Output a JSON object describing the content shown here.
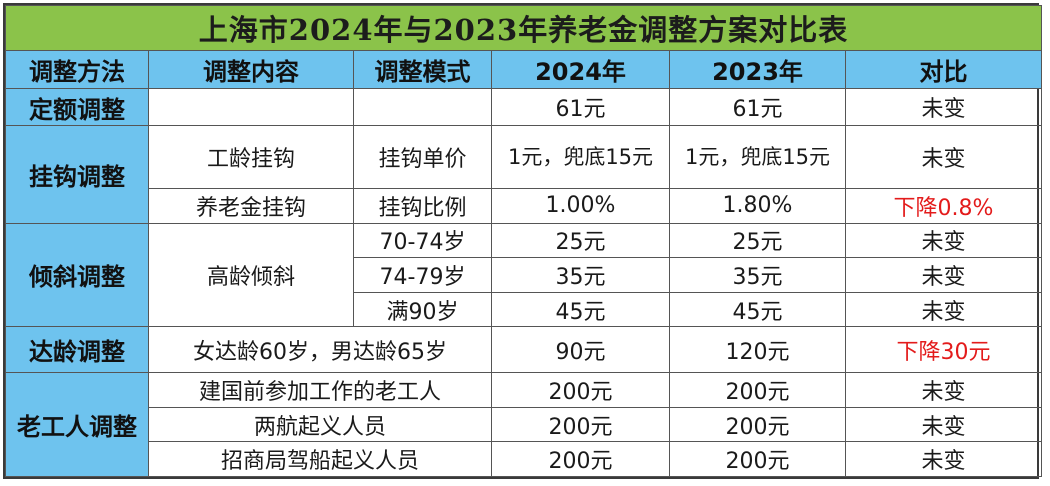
{
  "title": "上海市2024年与2023年养老金调整方案对比表",
  "headers": [
    "调整方法",
    "调整内容",
    "调整模式",
    "2024年",
    "2023年",
    "对比"
  ],
  "groups": {
    "fixed": {
      "label": "定额调整",
      "y2024": "61元",
      "y2023": "61元",
      "compare": "未变"
    },
    "linked": {
      "label": "挂钩调整",
      "rows": [
        {
          "content": "工龄挂钩",
          "mode": "挂钩单价",
          "y2024": "1元，兜底15元",
          "y2023": "1元，兜底15元",
          "compare": "未变"
        },
        {
          "content": "养老金挂钩",
          "mode": "挂钩比例",
          "y2024": "1.00%",
          "y2023": "1.80%",
          "compare": "下降0.8%"
        }
      ]
    },
    "tilt": {
      "label": "倾斜调整",
      "content": "高龄倾斜",
      "rows": [
        {
          "mode": "70-74岁",
          "y2024": "25元",
          "y2023": "25元",
          "compare": "未变"
        },
        {
          "mode": "74-79岁",
          "y2024": "35元",
          "y2023": "35元",
          "compare": "未变"
        },
        {
          "mode": "满90岁",
          "y2024": "45元",
          "y2023": "45元",
          "compare": "未变"
        }
      ]
    },
    "age": {
      "label": "达龄调整",
      "content": "女达龄60岁，男达龄65岁",
      "y2024": "90元",
      "y2023": "120元",
      "compare": "下降30元"
    },
    "veteran": {
      "label": "老工人调整",
      "rows": [
        {
          "content": "建国前参加工作的老工人",
          "y2024": "200元",
          "y2023": "200元",
          "compare": "未变"
        },
        {
          "content": "两航起义人员",
          "y2024": "200元",
          "y2023": "200元",
          "compare": "未变"
        },
        {
          "content": "招商局驾船起义人员",
          "y2024": "200元",
          "y2023": "200元",
          "compare": "未变"
        }
      ]
    }
  },
  "colors": {
    "title_bg": "#8bc34a",
    "header_bg": "#6ec3ee",
    "decrease_text": "#e31b1b"
  }
}
